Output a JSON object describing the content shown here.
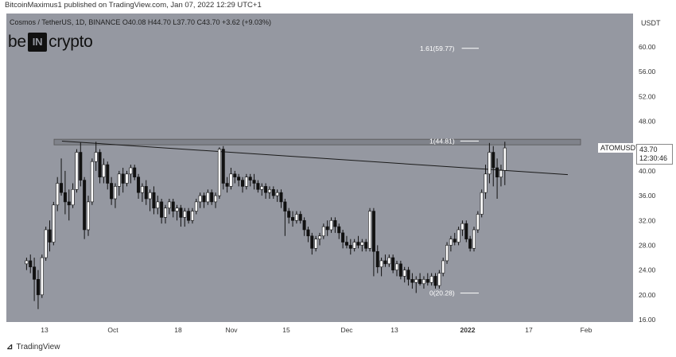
{
  "header": {
    "publisher": "BitcoinMaximus1 published on TradingView.com, Jan 07, 2022 12:29 UTC+1"
  },
  "symbol": {
    "line": "Cosmos / TetherUS, 1D, BINANCE  O40.08  H44.70  L37.70  C43.70  +3.62 (+9.03%)"
  },
  "logo": {
    "left": "be",
    "box": "IN",
    "right": "crypto"
  },
  "price_axis": {
    "currency": "USDT",
    "ticks": [
      "60.00",
      "56.00",
      "52.00",
      "48.00",
      "40.00",
      "36.00",
      "32.00",
      "28.00",
      "24.00",
      "20.00",
      "16.00"
    ]
  },
  "time_axis": {
    "labels": [
      "13",
      "Oct",
      "18",
      "Nov",
      "15",
      "Dec",
      "13",
      "2022",
      "17",
      "Feb"
    ]
  },
  "symbol_tag": "ATOMUSDT",
  "price_label": {
    "price": "43.70",
    "countdown": "12:30:46"
  },
  "footer": {
    "brand": "TradingView",
    "icon": "tradingview-logo-icon"
  },
  "colors": {
    "background": "#9598a1",
    "bull": "#ffffff",
    "bear": "#111111",
    "line": "#1a1a1a",
    "band": "#6f727a"
  },
  "chart_data": {
    "type": "candlestick",
    "title": "",
    "ylim": [
      16,
      64
    ],
    "fibonacci": [
      {
        "label": "1.61(59.77)",
        "value": 59.77
      },
      {
        "label": "1(44.81)",
        "value": 44.81
      },
      {
        "label": "0(20.28)",
        "value": 20.28
      }
    ],
    "resistance_band": [
      44.2,
      45.1
    ],
    "descending_resistance": [
      {
        "date": "Sep 15",
        "value": 44.8
      },
      {
        "date": "Jan 25",
        "value": 39.4
      }
    ],
    "candles_approx": [
      {
        "date": "Sep 05",
        "o": 25.0,
        "h": 26.0,
        "l": 24.0,
        "c": 25.5
      },
      {
        "date": "Sep 06",
        "o": 25.5,
        "h": 26.5,
        "l": 23.5,
        "c": 24.5
      },
      {
        "date": "Sep 07",
        "o": 24.5,
        "h": 26.0,
        "l": 19.0,
        "c": 22.5
      },
      {
        "date": "Sep 08",
        "o": 22.5,
        "h": 24.0,
        "l": 17.7,
        "c": 20.0
      },
      {
        "date": "Sep 09",
        "o": 20.0,
        "h": 26.5,
        "l": 19.5,
        "c": 26.0
      },
      {
        "date": "Sep 10",
        "o": 26.0,
        "h": 31.0,
        "l": 25.5,
        "c": 30.5
      },
      {
        "date": "Sep 11",
        "o": 30.5,
        "h": 32.0,
        "l": 27.0,
        "c": 28.5
      },
      {
        "date": "Sep 12",
        "o": 28.5,
        "h": 35.0,
        "l": 28.0,
        "c": 34.5
      },
      {
        "date": "Sep 13",
        "o": 34.5,
        "h": 39.0,
        "l": 33.5,
        "c": 38.0
      },
      {
        "date": "Sep 14",
        "o": 38.0,
        "h": 42.0,
        "l": 36.0,
        "c": 36.5
      },
      {
        "date": "Sep 15",
        "o": 36.5,
        "h": 40.0,
        "l": 33.0,
        "c": 35.0
      },
      {
        "date": "Sep 16",
        "o": 35.0,
        "h": 37.0,
        "l": 32.0,
        "c": 34.5
      },
      {
        "date": "Sep 17",
        "o": 34.5,
        "h": 38.0,
        "l": 34.0,
        "c": 37.0
      },
      {
        "date": "Sep 18",
        "o": 37.0,
        "h": 43.5,
        "l": 36.5,
        "c": 43.0
      },
      {
        "date": "Sep 19",
        "o": 43.0,
        "h": 44.6,
        "l": 37.5,
        "c": 38.5
      },
      {
        "date": "Sep 20",
        "o": 38.5,
        "h": 39.0,
        "l": 29.0,
        "c": 30.5
      },
      {
        "date": "Sep 21",
        "o": 30.5,
        "h": 36.0,
        "l": 29.5,
        "c": 35.0
      },
      {
        "date": "Sep 22",
        "o": 35.0,
        "h": 42.0,
        "l": 34.5,
        "c": 41.5
      },
      {
        "date": "Sep 23",
        "o": 41.5,
        "h": 44.7,
        "l": 40.0,
        "c": 43.0
      },
      {
        "date": "Sep 24",
        "o": 43.0,
        "h": 43.5,
        "l": 38.0,
        "c": 39.0
      },
      {
        "date": "Sep 25",
        "o": 39.0,
        "h": 42.0,
        "l": 38.0,
        "c": 41.0
      },
      {
        "date": "Sep 26",
        "o": 41.0,
        "h": 41.5,
        "l": 37.0,
        "c": 38.0
      },
      {
        "date": "Sep 27",
        "o": 38.0,
        "h": 39.0,
        "l": 34.5,
        "c": 35.5
      },
      {
        "date": "Sep 28",
        "o": 35.5,
        "h": 38.0,
        "l": 34.0,
        "c": 37.5
      },
      {
        "date": "Sep 29",
        "o": 37.5,
        "h": 40.0,
        "l": 36.0,
        "c": 39.5
      },
      {
        "date": "Sep 30",
        "o": 39.5,
        "h": 40.5,
        "l": 36.5,
        "c": 38.0
      },
      {
        "date": "Oct 01",
        "o": 38.0,
        "h": 40.0,
        "l": 37.5,
        "c": 39.5
      },
      {
        "date": "Oct 02",
        "o": 39.5,
        "h": 41.0,
        "l": 38.0,
        "c": 40.5
      },
      {
        "date": "Oct 03",
        "o": 40.5,
        "h": 41.0,
        "l": 38.5,
        "c": 39.0
      },
      {
        "date": "Oct 04",
        "o": 39.0,
        "h": 39.5,
        "l": 35.5,
        "c": 36.5
      },
      {
        "date": "Oct 05",
        "o": 36.5,
        "h": 38.0,
        "l": 35.0,
        "c": 37.5
      },
      {
        "date": "Oct 06",
        "o": 37.5,
        "h": 38.5,
        "l": 34.5,
        "c": 35.5
      },
      {
        "date": "Oct 07",
        "o": 35.5,
        "h": 37.0,
        "l": 33.5,
        "c": 36.5
      },
      {
        "date": "Oct 08",
        "o": 36.5,
        "h": 37.5,
        "l": 33.0,
        "c": 34.0
      },
      {
        "date": "Oct 09",
        "o": 34.0,
        "h": 36.0,
        "l": 33.0,
        "c": 35.0
      },
      {
        "date": "Oct 10",
        "o": 35.0,
        "h": 35.5,
        "l": 31.5,
        "c": 32.5
      },
      {
        "date": "Oct 11",
        "o": 32.5,
        "h": 34.5,
        "l": 31.5,
        "c": 34.0
      },
      {
        "date": "Oct 12",
        "o": 34.0,
        "h": 35.5,
        "l": 33.0,
        "c": 35.0
      },
      {
        "date": "Oct 13",
        "o": 35.0,
        "h": 35.5,
        "l": 32.5,
        "c": 33.5
      },
      {
        "date": "Oct 14",
        "o": 33.5,
        "h": 34.5,
        "l": 32.0,
        "c": 34.0
      },
      {
        "date": "Oct 15",
        "o": 34.0,
        "h": 34.5,
        "l": 31.0,
        "c": 32.5
      },
      {
        "date": "Oct 16",
        "o": 32.5,
        "h": 34.0,
        "l": 31.0,
        "c": 33.5
      },
      {
        "date": "Oct 17",
        "o": 33.5,
        "h": 34.0,
        "l": 31.5,
        "c": 32.0
      },
      {
        "date": "Oct 18",
        "o": 32.0,
        "h": 34.0,
        "l": 31.5,
        "c": 33.5
      },
      {
        "date": "Oct 19",
        "o": 33.5,
        "h": 35.5,
        "l": 33.0,
        "c": 35.0
      },
      {
        "date": "Oct 20",
        "o": 35.0,
        "h": 36.5,
        "l": 34.0,
        "c": 36.0
      },
      {
        "date": "Oct 21",
        "o": 36.0,
        "h": 36.5,
        "l": 34.0,
        "c": 35.0
      },
      {
        "date": "Oct 22",
        "o": 35.0,
        "h": 37.0,
        "l": 34.5,
        "c": 36.5
      },
      {
        "date": "Oct 23",
        "o": 36.5,
        "h": 37.0,
        "l": 34.5,
        "c": 35.0
      },
      {
        "date": "Oct 24",
        "o": 35.0,
        "h": 36.5,
        "l": 34.0,
        "c": 36.0
      },
      {
        "date": "Oct 25",
        "o": 36.0,
        "h": 43.8,
        "l": 35.5,
        "c": 43.5
      },
      {
        "date": "Oct 26",
        "o": 43.5,
        "h": 44.0,
        "l": 37.0,
        "c": 38.0
      },
      {
        "date": "Oct 27",
        "o": 38.0,
        "h": 39.0,
        "l": 36.5,
        "c": 37.5
      },
      {
        "date": "Oct 28",
        "o": 37.5,
        "h": 40.5,
        "l": 37.0,
        "c": 39.5
      },
      {
        "date": "Oct 29",
        "o": 39.5,
        "h": 40.0,
        "l": 38.0,
        "c": 39.0
      },
      {
        "date": "Oct 30",
        "o": 39.0,
        "h": 39.5,
        "l": 37.5,
        "c": 38.5
      },
      {
        "date": "Oct 31",
        "o": 38.5,
        "h": 39.0,
        "l": 36.5,
        "c": 37.5
      },
      {
        "date": "Nov 01",
        "o": 37.5,
        "h": 39.5,
        "l": 37.0,
        "c": 39.0
      },
      {
        "date": "Nov 02",
        "o": 39.0,
        "h": 39.5,
        "l": 37.5,
        "c": 38.5
      },
      {
        "date": "Nov 03",
        "o": 38.5,
        "h": 39.5,
        "l": 37.0,
        "c": 38.0
      },
      {
        "date": "Nov 04",
        "o": 38.0,
        "h": 38.5,
        "l": 36.5,
        "c": 37.0
      },
      {
        "date": "Nov 05",
        "o": 37.0,
        "h": 38.0,
        "l": 36.0,
        "c": 37.5
      },
      {
        "date": "Nov 06",
        "o": 37.5,
        "h": 38.0,
        "l": 35.5,
        "c": 36.5
      },
      {
        "date": "Nov 07",
        "o": 36.5,
        "h": 37.5,
        "l": 35.5,
        "c": 37.0
      },
      {
        "date": "Nov 08",
        "o": 37.0,
        "h": 37.5,
        "l": 35.5,
        "c": 36.0
      },
      {
        "date": "Nov 09",
        "o": 36.0,
        "h": 37.0,
        "l": 35.0,
        "c": 36.5
      },
      {
        "date": "Nov 10",
        "o": 36.5,
        "h": 37.0,
        "l": 34.0,
        "c": 35.0
      },
      {
        "date": "Nov 11",
        "o": 35.0,
        "h": 35.5,
        "l": 29.5,
        "c": 33.5
      },
      {
        "date": "Nov 12",
        "o": 33.5,
        "h": 34.0,
        "l": 31.5,
        "c": 32.5
      },
      {
        "date": "Nov 13",
        "o": 32.5,
        "h": 33.5,
        "l": 31.0,
        "c": 32.0
      },
      {
        "date": "Nov 14",
        "o": 32.0,
        "h": 33.5,
        "l": 31.5,
        "c": 33.0
      },
      {
        "date": "Nov 15",
        "o": 33.0,
        "h": 33.5,
        "l": 31.5,
        "c": 32.0
      },
      {
        "date": "Nov 16",
        "o": 32.0,
        "h": 32.5,
        "l": 29.5,
        "c": 30.5
      },
      {
        "date": "Nov 17",
        "o": 30.5,
        "h": 31.0,
        "l": 28.5,
        "c": 29.5
      },
      {
        "date": "Nov 18",
        "o": 29.5,
        "h": 30.0,
        "l": 26.5,
        "c": 27.5
      },
      {
        "date": "Nov 19",
        "o": 27.5,
        "h": 29.5,
        "l": 27.0,
        "c": 29.0
      },
      {
        "date": "Nov 20",
        "o": 29.0,
        "h": 30.0,
        "l": 28.0,
        "c": 29.5
      },
      {
        "date": "Nov 21",
        "o": 29.5,
        "h": 31.5,
        "l": 29.0,
        "c": 31.0
      },
      {
        "date": "Nov 22",
        "o": 31.0,
        "h": 32.0,
        "l": 29.5,
        "c": 30.5
      },
      {
        "date": "Nov 23",
        "o": 30.5,
        "h": 32.5,
        "l": 30.0,
        "c": 32.0
      },
      {
        "date": "Nov 24",
        "o": 32.0,
        "h": 32.5,
        "l": 30.0,
        "c": 31.0
      },
      {
        "date": "Nov 25",
        "o": 31.0,
        "h": 31.5,
        "l": 29.0,
        "c": 30.0
      },
      {
        "date": "Nov 26",
        "o": 30.0,
        "h": 30.5,
        "l": 27.5,
        "c": 28.5
      },
      {
        "date": "Nov 27",
        "o": 28.5,
        "h": 29.5,
        "l": 27.5,
        "c": 28.0
      },
      {
        "date": "Nov 28",
        "o": 28.0,
        "h": 29.0,
        "l": 26.5,
        "c": 27.5
      },
      {
        "date": "Nov 29",
        "o": 27.5,
        "h": 29.0,
        "l": 27.0,
        "c": 28.5
      },
      {
        "date": "Nov 30",
        "o": 28.5,
        "h": 29.5,
        "l": 27.5,
        "c": 28.0
      },
      {
        "date": "Dec 01",
        "o": 28.0,
        "h": 29.0,
        "l": 27.0,
        "c": 28.5
      },
      {
        "date": "Dec 02",
        "o": 28.5,
        "h": 29.0,
        "l": 27.0,
        "c": 27.5
      },
      {
        "date": "Dec 03",
        "o": 27.5,
        "h": 34.0,
        "l": 27.0,
        "c": 33.5
      },
      {
        "date": "Dec 04",
        "o": 33.5,
        "h": 34.0,
        "l": 23.0,
        "c": 27.0
      },
      {
        "date": "Dec 05",
        "o": 27.0,
        "h": 28.0,
        "l": 23.5,
        "c": 24.5
      },
      {
        "date": "Dec 06",
        "o": 24.5,
        "h": 26.0,
        "l": 23.0,
        "c": 25.5
      },
      {
        "date": "Dec 07",
        "o": 25.5,
        "h": 26.5,
        "l": 24.5,
        "c": 25.0
      },
      {
        "date": "Dec 08",
        "o": 25.0,
        "h": 26.5,
        "l": 24.5,
        "c": 26.0
      },
      {
        "date": "Dec 09",
        "o": 26.0,
        "h": 26.5,
        "l": 23.5,
        "c": 24.0
      },
      {
        "date": "Dec 10",
        "o": 24.0,
        "h": 25.5,
        "l": 23.0,
        "c": 25.0
      },
      {
        "date": "Dec 11",
        "o": 25.0,
        "h": 25.5,
        "l": 22.5,
        "c": 23.0
      },
      {
        "date": "Dec 12",
        "o": 23.0,
        "h": 24.5,
        "l": 22.0,
        "c": 24.0
      },
      {
        "date": "Dec 13",
        "o": 24.0,
        "h": 24.5,
        "l": 21.5,
        "c": 22.5
      },
      {
        "date": "Dec 14",
        "o": 22.5,
        "h": 23.5,
        "l": 21.0,
        "c": 22.0
      },
      {
        "date": "Dec 15",
        "o": 22.0,
        "h": 23.0,
        "l": 20.3,
        "c": 22.5
      },
      {
        "date": "Dec 16",
        "o": 22.5,
        "h": 23.5,
        "l": 21.5,
        "c": 21.8
      },
      {
        "date": "Dec 17",
        "o": 21.8,
        "h": 23.0,
        "l": 21.0,
        "c": 22.5
      },
      {
        "date": "Dec 18",
        "o": 22.5,
        "h": 23.5,
        "l": 21.5,
        "c": 22.0
      },
      {
        "date": "Dec 19",
        "o": 22.0,
        "h": 23.5,
        "l": 21.5,
        "c": 23.0
      },
      {
        "date": "Dec 20",
        "o": 23.0,
        "h": 23.5,
        "l": 21.0,
        "c": 21.5
      },
      {
        "date": "Dec 21",
        "o": 21.5,
        "h": 24.0,
        "l": 21.0,
        "c": 23.5
      },
      {
        "date": "Dec 22",
        "o": 23.5,
        "h": 26.0,
        "l": 23.0,
        "c": 25.5
      },
      {
        "date": "Dec 23",
        "o": 25.5,
        "h": 28.5,
        "l": 25.0,
        "c": 28.0
      },
      {
        "date": "Dec 24",
        "o": 28.0,
        "h": 29.5,
        "l": 27.0,
        "c": 29.0
      },
      {
        "date": "Dec 25",
        "o": 29.0,
        "h": 30.0,
        "l": 28.0,
        "c": 28.5
      },
      {
        "date": "Dec 26",
        "o": 28.5,
        "h": 31.0,
        "l": 28.0,
        "c": 30.5
      },
      {
        "date": "Dec 27",
        "o": 30.5,
        "h": 32.0,
        "l": 29.5,
        "c": 31.5
      },
      {
        "date": "Dec 28",
        "o": 31.5,
        "h": 32.0,
        "l": 28.5,
        "c": 29.0
      },
      {
        "date": "Dec 29",
        "o": 29.0,
        "h": 29.5,
        "l": 27.0,
        "c": 27.5
      },
      {
        "date": "Dec 30",
        "o": 27.5,
        "h": 31.0,
        "l": 27.0,
        "c": 30.5
      },
      {
        "date": "Dec 31",
        "o": 30.5,
        "h": 33.5,
        "l": 30.0,
        "c": 33.0
      },
      {
        "date": "Jan 01",
        "o": 33.0,
        "h": 37.0,
        "l": 32.5,
        "c": 36.5
      },
      {
        "date": "Jan 02",
        "o": 36.5,
        "h": 41.0,
        "l": 35.5,
        "c": 39.5
      },
      {
        "date": "Jan 03",
        "o": 39.5,
        "h": 44.5,
        "l": 38.0,
        "c": 43.0
      },
      {
        "date": "Jan 04",
        "o": 43.0,
        "h": 44.0,
        "l": 37.5,
        "c": 40.5
      },
      {
        "date": "Jan 05",
        "o": 40.5,
        "h": 42.0,
        "l": 35.5,
        "c": 39.0
      },
      {
        "date": "Jan 06",
        "o": 39.0,
        "h": 41.0,
        "l": 37.5,
        "c": 40.08
      },
      {
        "date": "Jan 07",
        "o": 40.08,
        "h": 44.7,
        "l": 37.7,
        "c": 43.7
      }
    ]
  }
}
